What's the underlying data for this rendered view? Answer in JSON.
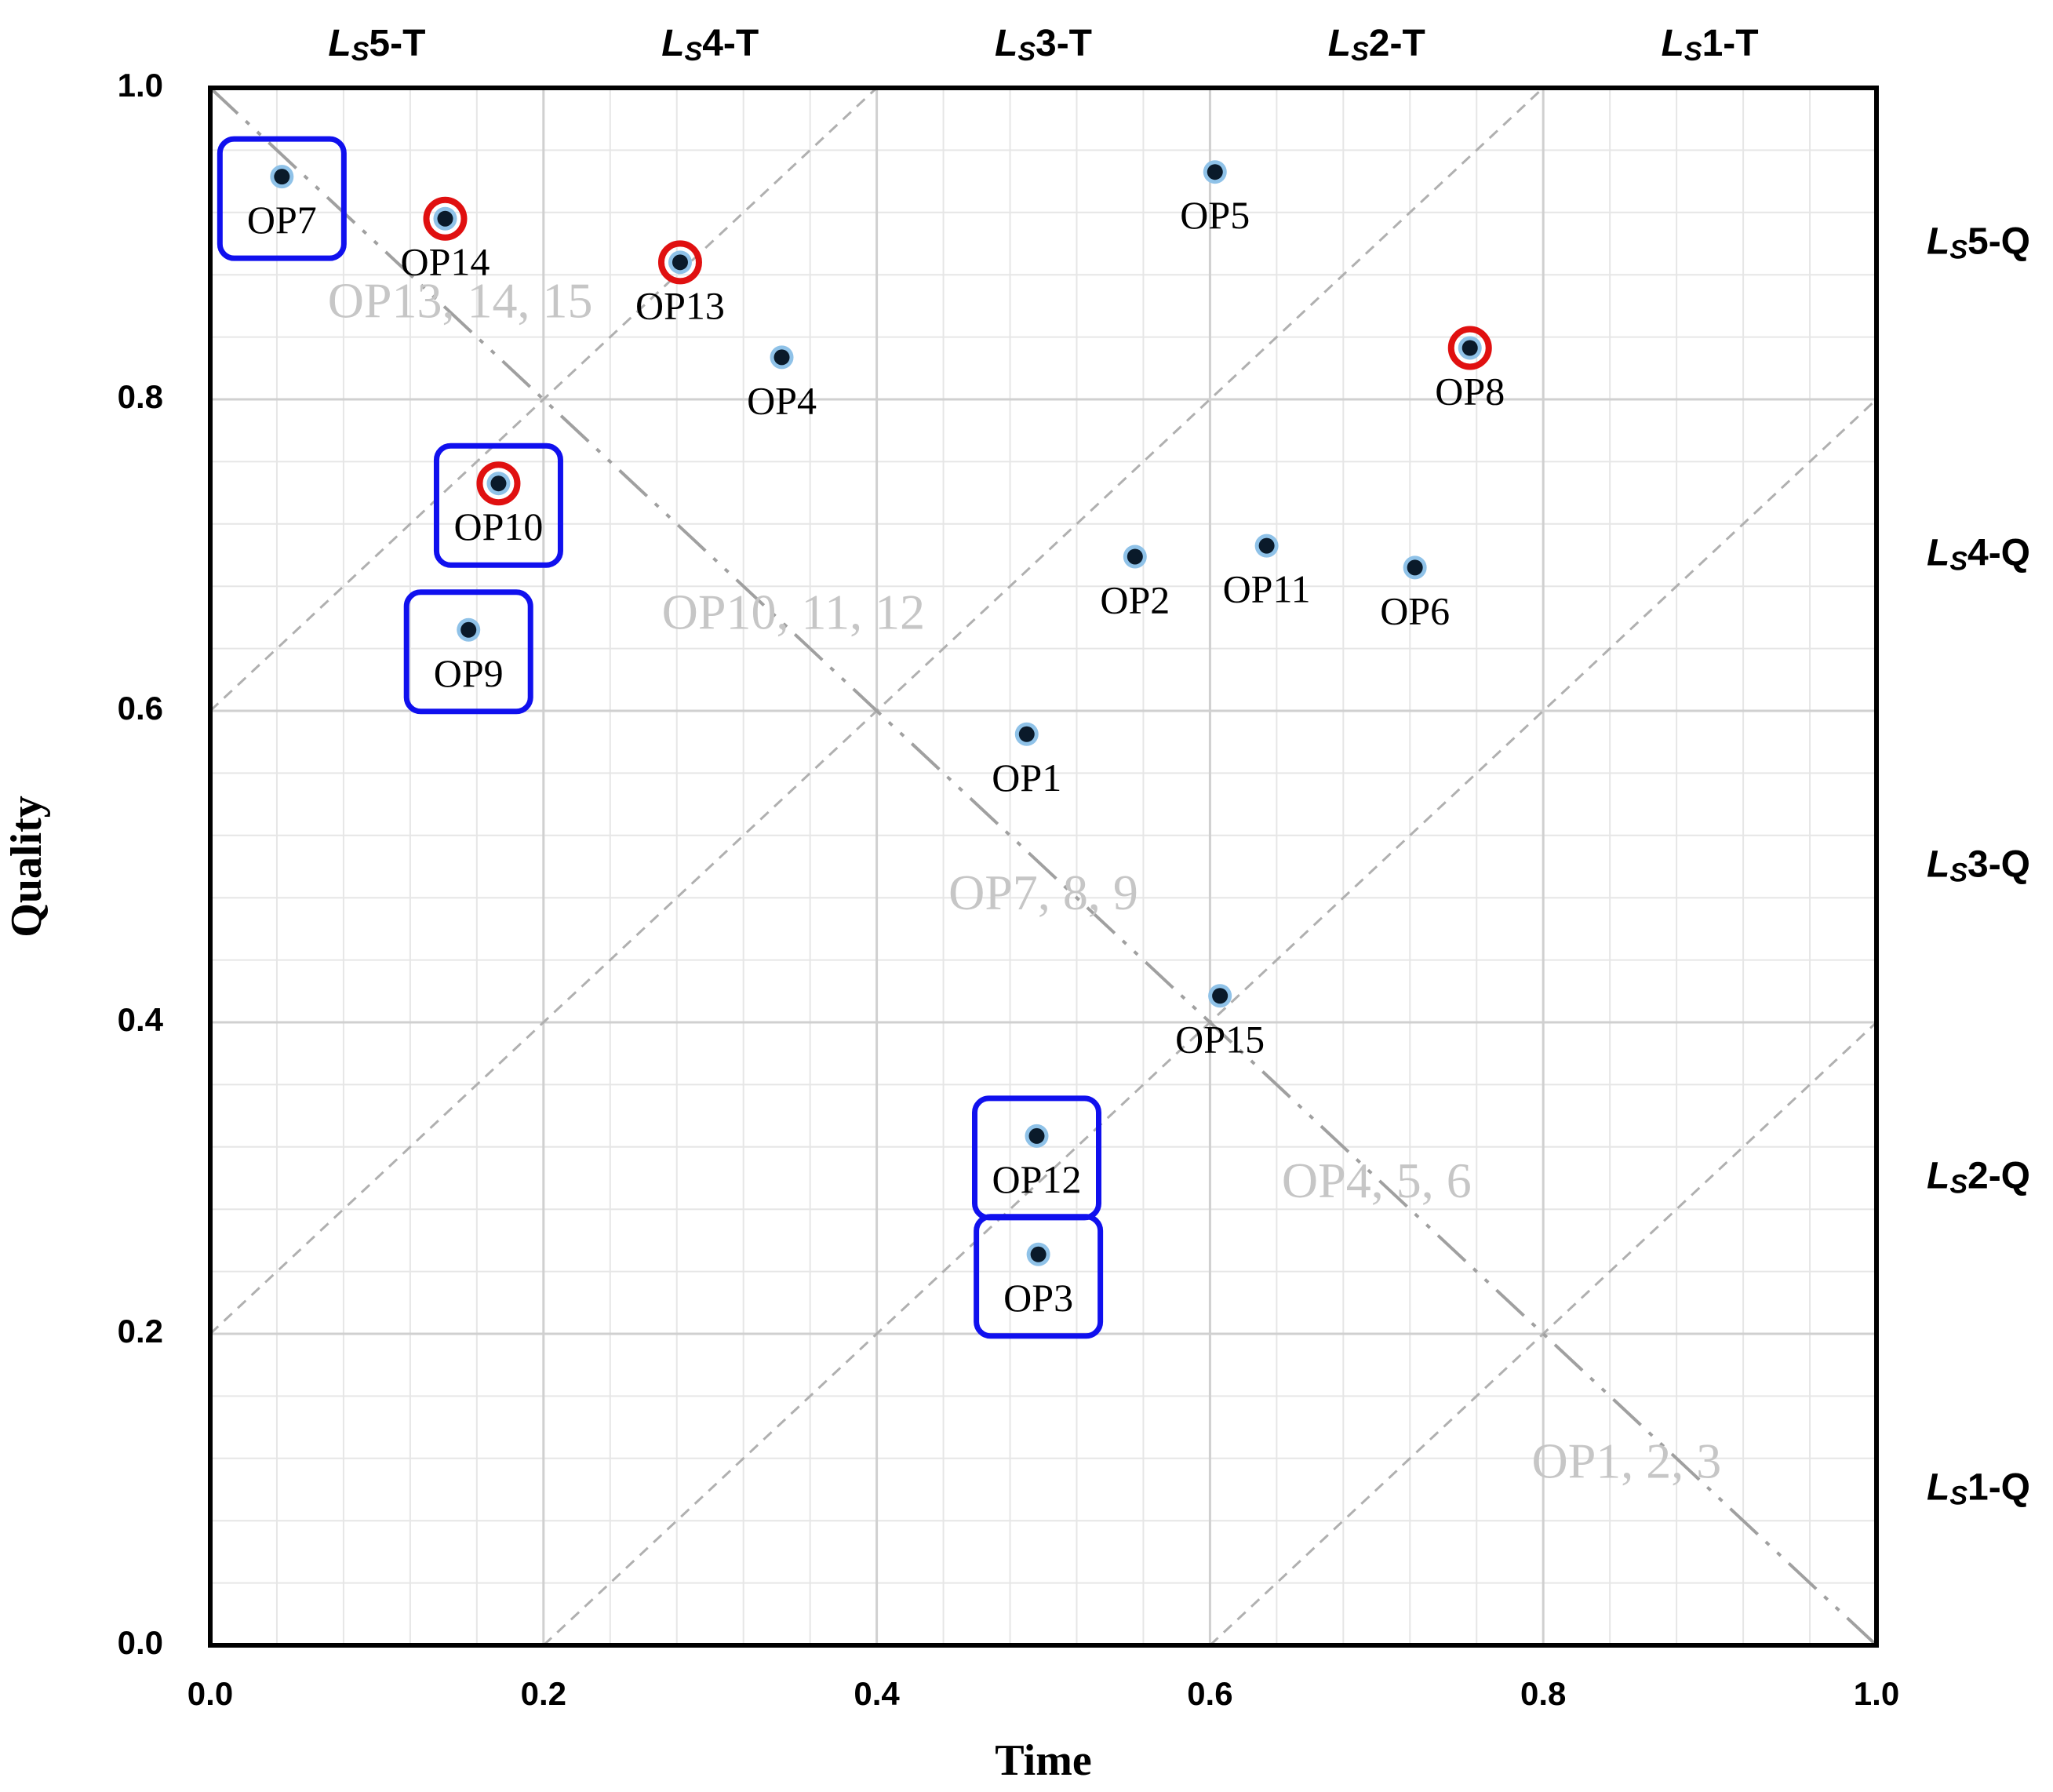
{
  "chart_data": {
    "type": "scatter",
    "xlabel": "Time",
    "ylabel": "Quality",
    "xlim": [
      0,
      1
    ],
    "ylim": [
      0,
      1
    ],
    "x_ticks": [
      "0.0",
      "0.2",
      "0.4",
      "0.6",
      "0.8",
      "1.0"
    ],
    "y_ticks": [
      "0.0",
      "0.2",
      "0.4",
      "0.6",
      "0.8",
      "1.0"
    ],
    "grid": true,
    "top_labels": [
      {
        "letter": "L",
        "sub": "S",
        "suffix": "5-T",
        "x": 0.1
      },
      {
        "letter": "L",
        "sub": "S",
        "suffix": "4-T",
        "x": 0.3
      },
      {
        "letter": "L",
        "sub": "S",
        "suffix": "3-T",
        "x": 0.5
      },
      {
        "letter": "L",
        "sub": "S",
        "suffix": "2-T",
        "x": 0.7
      },
      {
        "letter": "L",
        "sub": "S",
        "suffix": "1-T",
        "x": 0.9
      }
    ],
    "right_labels": [
      {
        "letter": "L",
        "sub": "S",
        "suffix": "5-Q",
        "y": 0.9
      },
      {
        "letter": "L",
        "sub": "S",
        "suffix": "4-Q",
        "y": 0.7
      },
      {
        "letter": "L",
        "sub": "S",
        "suffix": "3-Q",
        "y": 0.5
      },
      {
        "letter": "L",
        "sub": "S",
        "suffix": "2-Q",
        "y": 0.3
      },
      {
        "letter": "L",
        "sub": "S",
        "suffix": "1-Q",
        "y": 0.1
      }
    ],
    "diagonal_line_intercepts": [
      0.6,
      0.2,
      -0.2,
      -0.6
    ],
    "region_labels": [
      {
        "text": "OP13, 14, 15",
        "x": 0.15,
        "y": 0.86
      },
      {
        "text": "OP10, 11, 12",
        "x": 0.35,
        "y": 0.66
      },
      {
        "text": "OP7, 8, 9",
        "x": 0.5,
        "y": 0.48
      },
      {
        "text": "OP4, 5, 6",
        "x": 0.7,
        "y": 0.295
      },
      {
        "text": "OP1, 2, 3",
        "x": 0.85,
        "y": 0.115
      }
    ],
    "points": [
      {
        "label": "OP1",
        "x": 0.49,
        "y": 0.585,
        "highlight": "none"
      },
      {
        "label": "OP2",
        "x": 0.555,
        "y": 0.699,
        "highlight": "none"
      },
      {
        "label": "OP3",
        "x": 0.497,
        "y": 0.251,
        "highlight": "box"
      },
      {
        "label": "OP4",
        "x": 0.343,
        "y": 0.827,
        "highlight": "none"
      },
      {
        "label": "OP5",
        "x": 0.603,
        "y": 0.946,
        "highlight": "none"
      },
      {
        "label": "OP6",
        "x": 0.723,
        "y": 0.692,
        "highlight": "none"
      },
      {
        "label": "OP7",
        "x": 0.043,
        "y": 0.943,
        "highlight": "box"
      },
      {
        "label": "OP8",
        "x": 0.756,
        "y": 0.833,
        "highlight": "circle"
      },
      {
        "label": "OP9",
        "x": 0.155,
        "y": 0.652,
        "highlight": "box"
      },
      {
        "label": "OP10",
        "x": 0.173,
        "y": 0.746,
        "highlight": "box+circle"
      },
      {
        "label": "OP11",
        "x": 0.634,
        "y": 0.706,
        "highlight": "none"
      },
      {
        "label": "OP12",
        "x": 0.496,
        "y": 0.327,
        "highlight": "box"
      },
      {
        "label": "OP13",
        "x": 0.282,
        "y": 0.888,
        "highlight": "circle"
      },
      {
        "label": "OP14",
        "x": 0.141,
        "y": 0.916,
        "highlight": "circle"
      },
      {
        "label": "OP15",
        "x": 0.606,
        "y": 0.417,
        "highlight": "none"
      }
    ],
    "colors": {
      "box": "#1010ee",
      "circle": "#e01010",
      "point_fill": "#0a1a2a",
      "point_halo": "#8fc2e8",
      "grid_major": "#d0d0d0",
      "grid_minor": "#e6e6e6",
      "diag": "#b0b0b0",
      "anti_diag": "#a0a0a0",
      "region_text": "#c6c6c6"
    }
  }
}
